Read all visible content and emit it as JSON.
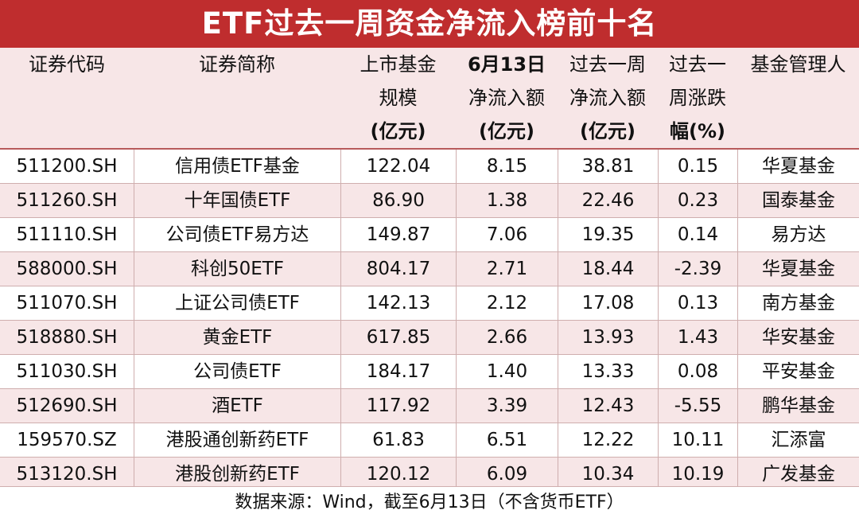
{
  "title": "ETF过去一周资金净流入榜前十名",
  "headers": [
    {
      "lines": [
        "证券代码"
      ],
      "bold": []
    },
    {
      "lines": [
        "证券简称"
      ],
      "bold": []
    },
    {
      "lines": [
        "上市基金",
        "规模",
        "(亿元)"
      ],
      "bold": [
        2
      ]
    },
    {
      "lines": [
        "6月13日",
        "净流入额",
        "(亿元)"
      ],
      "bold": [
        0,
        2
      ]
    },
    {
      "lines": [
        "过去一周",
        "净流入额",
        "(亿元)"
      ],
      "bold": [
        2
      ]
    },
    {
      "lines": [
        "过去一",
        "周涨跌",
        "幅(%)"
      ],
      "bold": [
        2
      ]
    },
    {
      "lines": [
        "基金管理人"
      ],
      "bold": []
    }
  ],
  "rows": [
    [
      "511200.SH",
      "信用债ETF基金",
      "122.04",
      "8.15",
      "38.81",
      "0.15",
      "华夏基金"
    ],
    [
      "511260.SH",
      "十年国债ETF",
      "86.90",
      "1.38",
      "22.46",
      "0.23",
      "国泰基金"
    ],
    [
      "511110.SH",
      "公司债ETF易方达",
      "149.87",
      "7.06",
      "19.35",
      "0.14",
      "易方达"
    ],
    [
      "588000.SH",
      "科创50ETF",
      "804.17",
      "2.71",
      "18.44",
      "-2.39",
      "华夏基金"
    ],
    [
      "511070.SH",
      "上证公司债ETF",
      "142.13",
      "2.12",
      "17.08",
      "0.13",
      "南方基金"
    ],
    [
      "518880.SH",
      "黄金ETF",
      "617.85",
      "2.66",
      "13.93",
      "1.43",
      "华安基金"
    ],
    [
      "511030.SH",
      "公司债ETF",
      "184.17",
      "1.40",
      "13.33",
      "0.08",
      "平安基金"
    ],
    [
      "512690.SH",
      "酒ETF",
      "117.92",
      "3.39",
      "12.43",
      "-5.55",
      "鹏华基金"
    ],
    [
      "159570.SZ",
      "港股通创新药ETF",
      "61.83",
      "6.51",
      "12.22",
      "10.11",
      "汇添富"
    ],
    [
      "513120.SH",
      "港股创新药ETF",
      "120.12",
      "6.09",
      "10.34",
      "10.19",
      "广发基金"
    ]
  ],
  "footer": "数据来源：Wind，截至6月13日（不含货币ETF）",
  "colors": {
    "title_bg": "#bf2d2e",
    "stripe": "#f7e6e7",
    "grid": "#cfaeae"
  }
}
